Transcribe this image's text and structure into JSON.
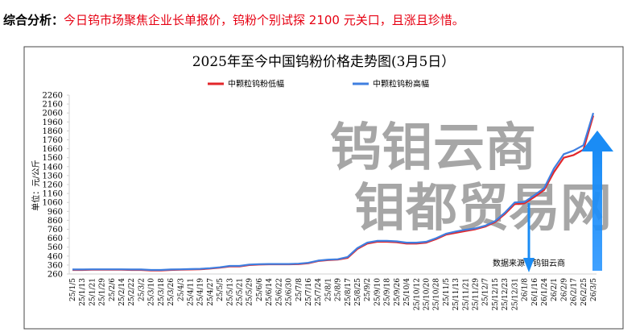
{
  "header": {
    "label": "综合分析：",
    "text": "今日钨市场聚焦企业长单报价，钨粉个别试探 2100 元关口，且涨且珍惜。"
  },
  "chart_data": {
    "type": "line",
    "title": "2025年至今中国钨粉价格走势图(3月5日）",
    "y_label": "单位：元/公斤",
    "source": "数据来源：钨钼云商",
    "watermark": [
      "钨钼云商",
      "钼都贸易网"
    ],
    "categories": [
      "25/1/5",
      "25/1/13",
      "25/1/21",
      "25/1/29",
      "25/2/6",
      "25/2/14",
      "25/2/22",
      "25/3/2",
      "25/3/10",
      "25/3/18",
      "25/3/26",
      "25/4/3",
      "25/4/11",
      "25/4/19",
      "25/4/27",
      "25/5/5",
      "25/5/13",
      "25/5/21",
      "25/5/29",
      "25/6/6",
      "25/6/14",
      "25/6/22",
      "25/6/30",
      "25/7/8",
      "25/7/16",
      "25/7/24",
      "25/8/1",
      "25/8/9",
      "25/8/17",
      "25/8/25",
      "25/9/2",
      "25/9/10",
      "25/9/18",
      "25/9/26",
      "25/10/4",
      "25/10/12",
      "25/10/20",
      "25/10/28",
      "25/11/5",
      "25/11/13",
      "25/11/21",
      "25/11/29",
      "25/12/7",
      "25/12/15",
      "25/12/23",
      "25/12/31",
      "26/1/8",
      "26/1/16",
      "26/1/24",
      "26/2/1",
      "26/2/9",
      "26/2/17",
      "26/2/25",
      "26/3/5"
    ],
    "series": [
      {
        "name": "中颗粒钨粉低幅",
        "color": "#e3262a",
        "values": [
          305,
          305,
          308,
          308,
          308,
          308,
          305,
          305,
          300,
          300,
          305,
          308,
          310,
          312,
          320,
          330,
          345,
          345,
          360,
          365,
          368,
          368,
          368,
          370,
          380,
          405,
          415,
          420,
          440,
          540,
          600,
          620,
          620,
          615,
          600,
          600,
          610,
          650,
          700,
          720,
          740,
          760,
          790,
          840,
          930,
          1040,
          1050,
          1120,
          1200,
          1400,
          1560,
          1590,
          1650,
          2030
        ]
      },
      {
        "name": "中颗粒钨粉高幅",
        "color": "#3f7fe0",
        "values": [
          310,
          310,
          312,
          312,
          312,
          312,
          310,
          310,
          305,
          305,
          310,
          312,
          315,
          318,
          325,
          335,
          350,
          350,
          365,
          370,
          372,
          372,
          372,
          375,
          385,
          410,
          420,
          425,
          450,
          550,
          610,
          630,
          630,
          625,
          610,
          610,
          620,
          660,
          710,
          735,
          755,
          770,
          800,
          850,
          945,
          1060,
          1065,
          1140,
          1220,
          1440,
          1600,
          1640,
          1700,
          2060
        ]
      }
    ],
    "ylim": [
      260,
      2260
    ],
    "yticks": [
      260,
      360,
      460,
      560,
      660,
      760,
      860,
      960,
      1060,
      1160,
      1260,
      1360,
      1460,
      1560,
      1660,
      1760,
      1860,
      1960,
      2060,
      2160,
      2260
    ]
  }
}
